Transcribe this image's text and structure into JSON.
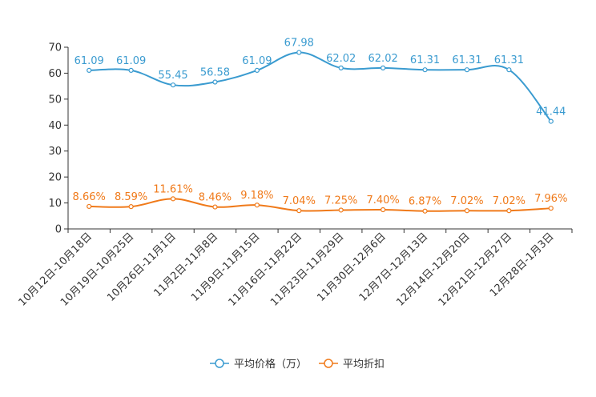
{
  "chart_data": {
    "type": "line",
    "title": "",
    "xlabel": "",
    "ylabel": "",
    "ylim": [
      0,
      70
    ],
    "yticks": [
      0,
      10,
      20,
      30,
      40,
      50,
      60,
      70
    ],
    "categories": [
      "10月12日-10月18日",
      "10月19日-10月25日",
      "10月26日-11月1日",
      "11月2日-11月8日",
      "11月9日-11月15日",
      "11月16日-11月22日",
      "11月23日-11月29日",
      "11月30日-12月6日",
      "12月7日-12月13日",
      "12月14日-12月20日",
      "12月21日-12月27日",
      "12月28日-1月3日"
    ],
    "series": [
      {
        "name": "平均价格（万）",
        "color": "#3a9bd0",
        "values": [
          61.09,
          61.09,
          55.45,
          56.58,
          61.09,
          67.98,
          62.02,
          62.02,
          61.31,
          61.31,
          61.31,
          41.44
        ],
        "labels": [
          "61.09",
          "61.09",
          "55.45",
          "56.58",
          "61.09",
          "67.98",
          "62.02",
          "62.02",
          "61.31",
          "61.31",
          "61.31",
          "41.44"
        ]
      },
      {
        "name": "平均折扣",
        "color": "#f07a1a",
        "values": [
          8.66,
          8.59,
          11.61,
          8.46,
          9.18,
          7.04,
          7.25,
          7.4,
          6.87,
          7.02,
          7.02,
          7.96
        ],
        "labels": [
          "8.66%",
          "8.59%",
          "11.61%",
          "8.46%",
          "9.18%",
          "7.04%",
          "7.25%",
          "7.40%",
          "6.87%",
          "7.02%",
          "7.02%",
          "7.96%"
        ]
      }
    ],
    "legend_position": "bottom-center",
    "grid": false
  }
}
